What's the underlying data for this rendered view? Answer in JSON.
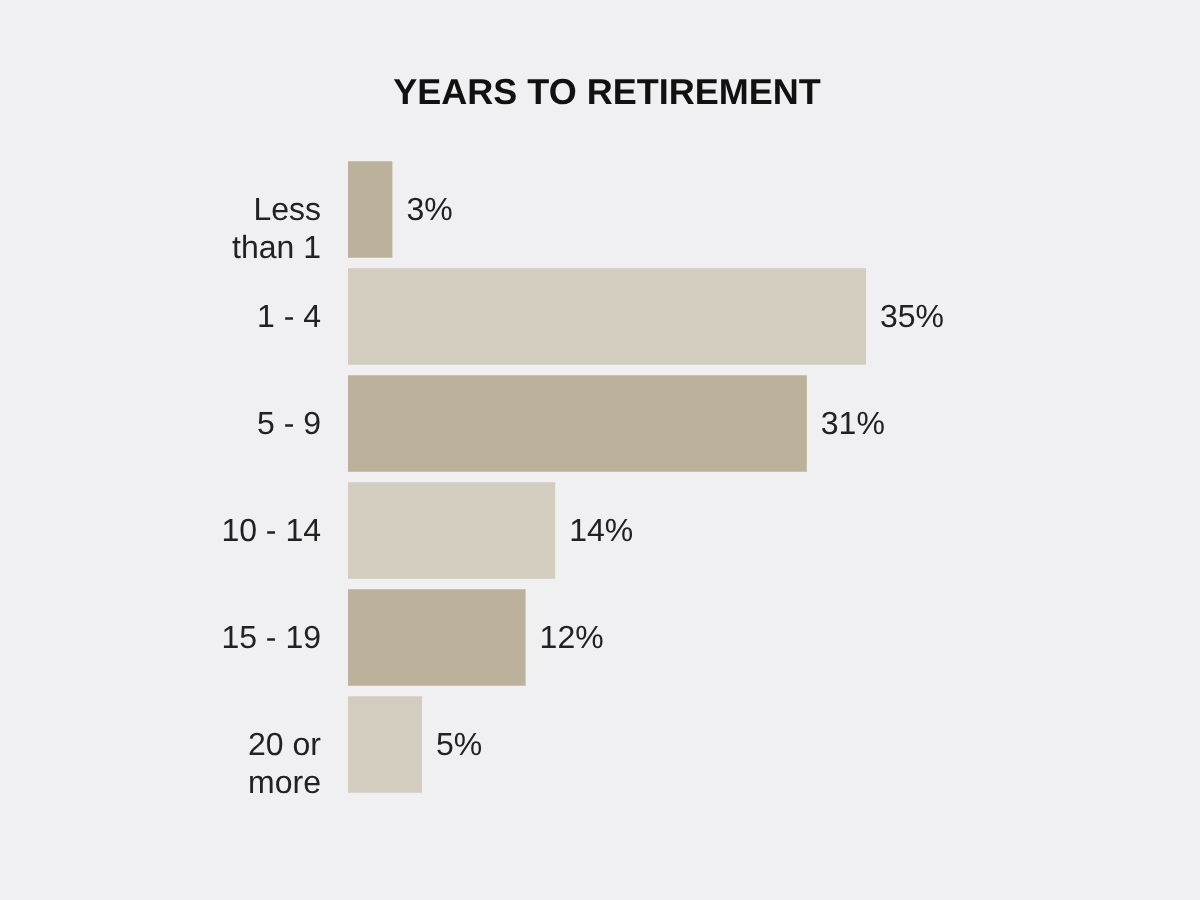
{
  "chart_data": {
    "type": "bar",
    "orientation": "horizontal",
    "title": "YEARS TO RETIREMENT",
    "categories": [
      "Less\nthan 1",
      "1 - 4",
      "5 - 9",
      "10 - 14",
      "15 - 19",
      "20 or\nmore"
    ],
    "values": [
      3,
      35,
      31,
      14,
      12,
      5
    ],
    "colors": [
      "#bcb29b",
      "#d3cdbf",
      "#bcb29b",
      "#d3cdbf",
      "#bcb29b",
      "#d3cdbf"
    ],
    "value_labels": [
      "3%",
      "35%",
      "31%",
      "14%",
      "12%",
      "5%"
    ]
  }
}
